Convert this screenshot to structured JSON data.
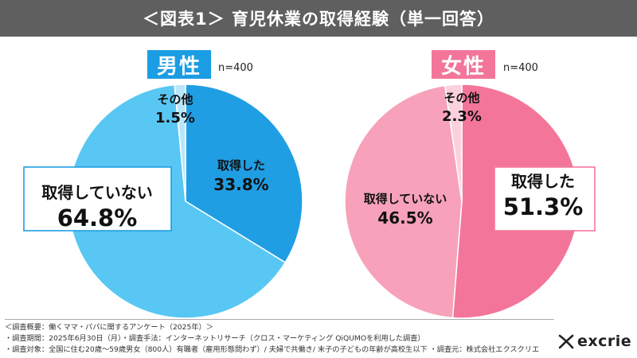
{
  "header": {
    "title": "＜図表1＞ 育児休業の取得経験（単一回答）"
  },
  "chart_data": [
    {
      "type": "pie",
      "title": "男性",
      "n_label": "n=400",
      "categories": [
        "取得した",
        "取得していない",
        "その他"
      ],
      "values": [
        33.8,
        64.8,
        1.5
      ],
      "value_labels": [
        "33.8%",
        "64.8%",
        "1.5%"
      ],
      "colors": [
        "#1f9ee4",
        "#59c7f3",
        "#b9e6fa"
      ]
    },
    {
      "type": "pie",
      "title": "女性",
      "n_label": "n=400",
      "categories": [
        "取得した",
        "取得していない",
        "その他"
      ],
      "values": [
        51.3,
        46.5,
        2.3
      ],
      "value_labels": [
        "51.3%",
        "46.5%",
        "2.3%"
      ],
      "colors": [
        "#f3769a",
        "#f7a2ba",
        "#fbd1dd"
      ]
    }
  ],
  "footer": {
    "lines": [
      "＜調査概要：働くママ・パパに関するアンケート（2025年）＞",
      "・調査期間：2025年6月30日（月）・調査手法：インターネットリサーチ（クロス・マーケティング QiQUMOを利用した調査）",
      "・調査対象：全国に住む20歳～59歳男女（800人）有職者（雇用形態問わず）/ 夫婦で共働き/ 末子の子どもの年齢が高校生以下 ・調査元：株式会社エクスクリエ"
    ]
  },
  "logo": {
    "text": "excrie",
    "icon": "excrie-logo-icon"
  }
}
